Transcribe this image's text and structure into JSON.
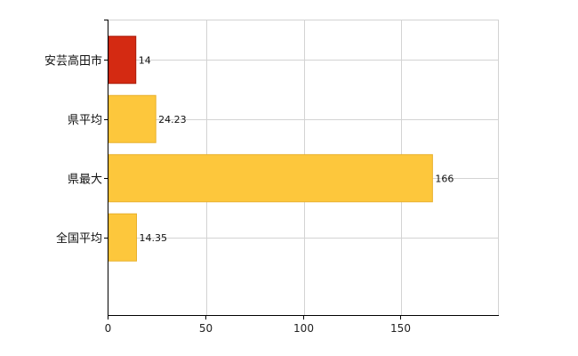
{
  "chart_data": {
    "type": "bar",
    "orientation": "horizontal",
    "categories": [
      "安芸高田市",
      "県平均",
      "県最大",
      "全国平均"
    ],
    "values": [
      14,
      24.23,
      166,
      14.35
    ],
    "data_labels": [
      "14",
      "24.23",
      "166",
      "14.35"
    ],
    "bar_colors": [
      "#d42a12",
      "#fdc73c",
      "#fdc73c",
      "#fdc73c"
    ],
    "bar_stroke_colors": [
      "#a81a08",
      "#e8b02c",
      "#e8b02c",
      "#e8b02c"
    ],
    "title": "",
    "xlabel": "",
    "ylabel": "",
    "xlim": [
      0,
      200
    ],
    "xticks": [
      0,
      50,
      100,
      150
    ],
    "xtick_labels": [
      "0",
      "50",
      "100",
      "150"
    ],
    "grid": true,
    "legend": "none",
    "grid_color": "#d3d3d3",
    "axis_color": "#000000"
  }
}
